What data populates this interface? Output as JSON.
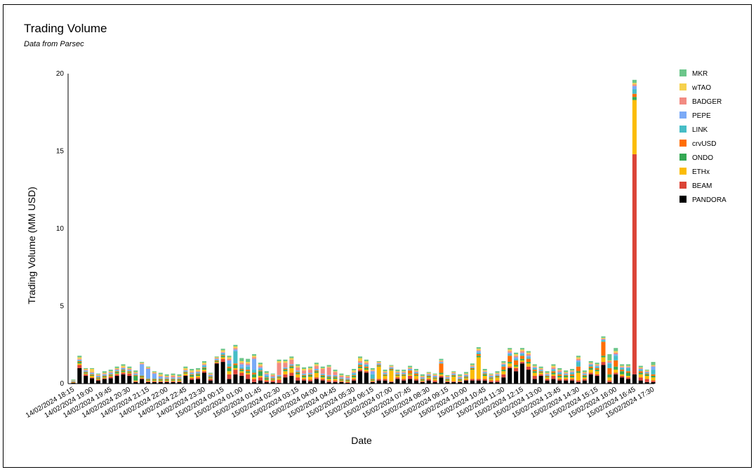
{
  "chart_data": {
    "type": "bar",
    "stacked": true,
    "title": "Trading Volume",
    "subtitle": "Data from Parsec",
    "xlabel": "Date",
    "ylabel": "Trading Volume (MM USD)",
    "ylim": [
      0,
      20
    ],
    "yticks": [
      0,
      5,
      10,
      15,
      20
    ],
    "grid": false,
    "legend_position": "right",
    "x_tick_labels": [
      "14/02/2024 18:15",
      "14/02/2024 19:00",
      "14/02/2024 19:45",
      "14/02/2024 20:30",
      "14/02/2024 21:15",
      "14/02/2024 22:00",
      "14/02/2024 22:45",
      "14/02/2024 23:30",
      "15/02/2024 00:15",
      "15/02/2024 01:00",
      "15/02/2024 01:45",
      "15/02/2024 02:30",
      "15/02/2024 03:15",
      "15/02/2024 04:00",
      "15/02/2024 04:45",
      "15/02/2024 05:30",
      "15/02/2024 06:15",
      "15/02/2024 07:00",
      "15/02/2024 07:45",
      "15/02/2024 08:30",
      "15/02/2024 09:15",
      "15/02/2024 10:00",
      "15/02/2024 10:45",
      "15/02/2024 11:30",
      "15/02/2024 12:15",
      "15/02/2024 13:00",
      "15/02/2024 13:45",
      "15/02/2024 14:30",
      "15/02/2024 15:15",
      "15/02/2024 16:00",
      "15/02/2024 16:45",
      "15/02/2024 17:30"
    ],
    "x": [
      "14/02/2024 18:15",
      "14/02/2024 18:30",
      "14/02/2024 18:45",
      "14/02/2024 19:00",
      "14/02/2024 19:15",
      "14/02/2024 19:30",
      "14/02/2024 19:45",
      "14/02/2024 20:00",
      "14/02/2024 20:15",
      "14/02/2024 20:30",
      "14/02/2024 20:45",
      "14/02/2024 21:00",
      "14/02/2024 21:15",
      "14/02/2024 21:30",
      "14/02/2024 21:45",
      "14/02/2024 22:00",
      "14/02/2024 22:15",
      "14/02/2024 22:30",
      "14/02/2024 22:45",
      "14/02/2024 23:00",
      "14/02/2024 23:15",
      "14/02/2024 23:30",
      "14/02/2024 23:45",
      "15/02/2024 00:00",
      "15/02/2024 00:15",
      "15/02/2024 00:30",
      "15/02/2024 00:45",
      "15/02/2024 01:00",
      "15/02/2024 01:15",
      "15/02/2024 01:30",
      "15/02/2024 01:45",
      "15/02/2024 02:00",
      "15/02/2024 02:15",
      "15/02/2024 02:30",
      "15/02/2024 02:45",
      "15/02/2024 03:00",
      "15/02/2024 03:15",
      "15/02/2024 03:30",
      "15/02/2024 03:45",
      "15/02/2024 04:00",
      "15/02/2024 04:15",
      "15/02/2024 04:30",
      "15/02/2024 04:45",
      "15/02/2024 05:00",
      "15/02/2024 05:15",
      "15/02/2024 05:30",
      "15/02/2024 05:45",
      "15/02/2024 06:00",
      "15/02/2024 06:15",
      "15/02/2024 06:30",
      "15/02/2024 06:45",
      "15/02/2024 07:00",
      "15/02/2024 07:15",
      "15/02/2024 07:30",
      "15/02/2024 07:45",
      "15/02/2024 08:00",
      "15/02/2024 08:15",
      "15/02/2024 08:30",
      "15/02/2024 08:45",
      "15/02/2024 09:00",
      "15/02/2024 09:15",
      "15/02/2024 09:30",
      "15/02/2024 09:45",
      "15/02/2024 10:00",
      "15/02/2024 10:15",
      "15/02/2024 10:30",
      "15/02/2024 10:45",
      "15/02/2024 11:00",
      "15/02/2024 11:15",
      "15/02/2024 11:30",
      "15/02/2024 11:45",
      "15/02/2024 12:00",
      "15/02/2024 12:15",
      "15/02/2024 12:30",
      "15/02/2024 12:45",
      "15/02/2024 13:00",
      "15/02/2024 13:15",
      "15/02/2024 13:30",
      "15/02/2024 13:45",
      "15/02/2024 14:00",
      "15/02/2024 14:15",
      "15/02/2024 14:30",
      "15/02/2024 14:45",
      "15/02/2024 15:00",
      "15/02/2024 15:15",
      "15/02/2024 15:30",
      "15/02/2024 15:45",
      "15/02/2024 16:00",
      "15/02/2024 16:15",
      "15/02/2024 16:30",
      "15/02/2024 16:45",
      "15/02/2024 17:00",
      "15/02/2024 17:15",
      "15/02/2024 17:30"
    ],
    "series": [
      {
        "name": "PANDORA",
        "color": "#000000",
        "values": [
          0.05,
          1.0,
          0.5,
          0.35,
          0.2,
          0.3,
          0.35,
          0.5,
          0.6,
          0.5,
          0.1,
          0.3,
          0.1,
          0.1,
          0.1,
          0.1,
          0.1,
          0.1,
          0.5,
          0.25,
          0.3,
          0.7,
          0.2,
          1.3,
          1.4,
          0.3,
          0.6,
          0.5,
          0.3,
          0.1,
          0.2,
          0.1,
          0.1,
          0.05,
          0.4,
          0.5,
          0.2,
          0.2,
          0.15,
          0.3,
          0.2,
          0.1,
          0.1,
          0.1,
          0.05,
          0.2,
          0.8,
          0.7,
          0.1,
          0.2,
          0.2,
          0.1,
          0.3,
          0.2,
          0.3,
          0.2,
          0.1,
          0.2,
          0.1,
          0.4,
          0.1,
          0.1,
          0.1,
          0.2,
          0.2,
          0.2,
          0.2,
          0.1,
          0.1,
          0.4,
          1.0,
          0.8,
          1.3,
          0.9,
          0.3,
          0.5,
          0.2,
          0.3,
          0.2,
          0.2,
          0.2,
          0.1,
          0.2,
          0.6,
          0.5,
          1.2,
          0.1,
          0.6,
          0.4,
          0.3,
          0.6,
          0.2,
          0.1,
          0.1
        ]
      },
      {
        "name": "BEAM",
        "color": "#db4437",
        "values": [
          0.02,
          0.2,
          0.1,
          0.05,
          0.05,
          0.05,
          0.1,
          0.1,
          0.1,
          0.15,
          0.05,
          0.05,
          0.05,
          0.05,
          0.05,
          0.05,
          0.05,
          0.05,
          0.05,
          0.1,
          0.1,
          0.1,
          0.1,
          0.05,
          0.2,
          0.3,
          0.3,
          0.2,
          0.3,
          0.2,
          0.2,
          0.1,
          0.1,
          0.2,
          0.2,
          0.2,
          0.2,
          0.1,
          0.1,
          0.1,
          0.1,
          0.1,
          0.1,
          0.05,
          0.05,
          0.1,
          0.1,
          0.1,
          0.05,
          0.1,
          0.1,
          0.05,
          0.1,
          0.1,
          0.2,
          0.1,
          0.05,
          0.1,
          0.1,
          0.1,
          0.05,
          0.05,
          0.05,
          0.05,
          0.1,
          0.1,
          0.1,
          0.1,
          0.1,
          0.2,
          0.1,
          0.2,
          0.1,
          0.2,
          0.2,
          0.1,
          0.1,
          0.2,
          0.1,
          0.1,
          0.1,
          0.1,
          0.1,
          0.1,
          0.1,
          0.2,
          0.1,
          0.1,
          0.1,
          0.1,
          14.2,
          0.2,
          0.2,
          0.1
        ]
      },
      {
        "name": "ETHx",
        "color": "#fbbc04",
        "values": [
          0.02,
          0.1,
          0.05,
          0.1,
          0.05,
          0.05,
          0.05,
          0.05,
          0.05,
          0.05,
          0.05,
          0.05,
          0.05,
          0.05,
          0.05,
          0.05,
          0.05,
          0.05,
          0.1,
          0.1,
          0.1,
          0.1,
          0.05,
          0.05,
          0.1,
          0.2,
          0.1,
          0.1,
          0.1,
          0.1,
          0.1,
          0.05,
          0.05,
          0.1,
          0.2,
          0.3,
          0.2,
          0.1,
          0.2,
          0.3,
          0.1,
          0.1,
          0.1,
          0.05,
          0.05,
          0.1,
          0.1,
          0.1,
          0.05,
          0.8,
          0.2,
          0.7,
          0.1,
          0.2,
          0.1,
          0.2,
          0.05,
          0.1,
          0.1,
          0.1,
          0.05,
          0.3,
          0.05,
          0.1,
          0.6,
          1.4,
          0.2,
          0.1,
          0.2,
          0.2,
          0.2,
          0.1,
          0.1,
          0.2,
          0.2,
          0.1,
          0.1,
          0.1,
          0.1,
          0.1,
          0.1,
          0.5,
          0.1,
          0.2,
          0.2,
          0.3,
          0.2,
          0.2,
          0.1,
          0.1,
          3.5,
          0.2,
          0.2,
          0.2
        ]
      },
      {
        "name": "ONDO",
        "color": "#34a853",
        "values": [
          0.02,
          0.1,
          0.05,
          0.05,
          0.05,
          0.05,
          0.05,
          0.1,
          0.1,
          0.05,
          0.3,
          0.05,
          0.05,
          0.05,
          0.05,
          0.05,
          0.05,
          0.05,
          0.05,
          0.1,
          0.1,
          0.1,
          0.05,
          0.05,
          0.1,
          0.2,
          0.2,
          0.1,
          0.1,
          0.2,
          0.3,
          0.1,
          0.05,
          0.05,
          0.1,
          0.1,
          0.1,
          0.1,
          0.1,
          0.1,
          0.1,
          0.1,
          0.1,
          0.05,
          0.05,
          0.1,
          0.1,
          0.1,
          0.05,
          0.05,
          0.05,
          0.05,
          0.05,
          0.05,
          0.05,
          0.05,
          0.05,
          0.05,
          0.05,
          0.1,
          0.05,
          0.05,
          0.05,
          0.05,
          0.05,
          0.1,
          0.1,
          0.05,
          0.05,
          0.1,
          0.1,
          0.1,
          0.1,
          0.1,
          0.1,
          0.05,
          0.05,
          0.1,
          0.1,
          0.1,
          0.1,
          0.1,
          0.1,
          0.1,
          0.1,
          0.1,
          0.2,
          0.2,
          0.2,
          0.2,
          0.2,
          0.1,
          0.1,
          0.1
        ]
      },
      {
        "name": "crvUSD",
        "color": "#ff6d01",
        "values": [
          0.02,
          0.05,
          0.05,
          0.05,
          0.05,
          0.05,
          0.05,
          0.05,
          0.05,
          0.05,
          0.05,
          0.05,
          0.05,
          0.05,
          0.05,
          0.05,
          0.05,
          0.05,
          0.05,
          0.05,
          0.05,
          0.05,
          0.05,
          0.05,
          0.05,
          0.1,
          0.1,
          0.05,
          0.1,
          0.1,
          0.05,
          0.05,
          0.05,
          0.05,
          0.05,
          0.05,
          0.05,
          0.05,
          0.05,
          0.05,
          0.05,
          0.05,
          0.05,
          0.05,
          0.05,
          0.05,
          0.1,
          0.1,
          0.05,
          0.05,
          0.05,
          0.05,
          0.05,
          0.05,
          0.2,
          0.1,
          0.05,
          0.05,
          0.05,
          0.6,
          0.05,
          0.05,
          0.05,
          0.05,
          0.05,
          0.1,
          0.05,
          0.05,
          0.05,
          0.2,
          0.4,
          0.3,
          0.2,
          0.2,
          0.1,
          0.05,
          0.05,
          0.1,
          0.1,
          0.05,
          0.1,
          0.3,
          0.05,
          0.1,
          0.1,
          0.9,
          0.4,
          0.4,
          0.1,
          0.1,
          0.2,
          0.1,
          0.05,
          0.1
        ]
      },
      {
        "name": "LINK",
        "color": "#46bdc6",
        "values": [
          0.02,
          0.05,
          0.05,
          0.05,
          0.05,
          0.05,
          0.05,
          0.05,
          0.05,
          0.05,
          0.05,
          0.05,
          0.05,
          0.05,
          0.05,
          0.05,
          0.05,
          0.05,
          0.05,
          0.05,
          0.05,
          0.1,
          0.05,
          0.05,
          0.1,
          0.2,
          0.8,
          0.1,
          0.2,
          0.2,
          0.1,
          0.1,
          0.05,
          0.05,
          0.05,
          0.05,
          0.05,
          0.05,
          0.05,
          0.05,
          0.05,
          0.05,
          0.05,
          0.05,
          0.05,
          0.1,
          0.1,
          0.1,
          0.3,
          0.05,
          0.05,
          0.05,
          0.05,
          0.05,
          0.05,
          0.05,
          0.05,
          0.05,
          0.05,
          0.05,
          0.05,
          0.05,
          0.05,
          0.05,
          0.05,
          0.1,
          0.05,
          0.05,
          0.05,
          0.1,
          0.1,
          0.1,
          0.1,
          0.1,
          0.1,
          0.05,
          0.05,
          0.1,
          0.1,
          0.05,
          0.1,
          0.3,
          0.05,
          0.1,
          0.1,
          0.1,
          0.3,
          0.3,
          0.1,
          0.2,
          0.3,
          0.1,
          0.05,
          0.3
        ]
      },
      {
        "name": "PEPE",
        "color": "#7baaf7",
        "values": [
          0.02,
          0.05,
          0.05,
          0.05,
          0.05,
          0.05,
          0.05,
          0.05,
          0.05,
          0.05,
          0.05,
          0.7,
          0.6,
          0.3,
          0.1,
          0.05,
          0.05,
          0.05,
          0.05,
          0.05,
          0.05,
          0.05,
          0.05,
          0.05,
          0.05,
          0.2,
          0.1,
          0.2,
          0.1,
          0.7,
          0.1,
          0.1,
          0.05,
          0.05,
          0.05,
          0.05,
          0.05,
          0.05,
          0.05,
          0.05,
          0.05,
          0.05,
          0.05,
          0.05,
          0.05,
          0.05,
          0.05,
          0.05,
          0.2,
          0.05,
          0.05,
          0.05,
          0.05,
          0.05,
          0.05,
          0.05,
          0.05,
          0.05,
          0.05,
          0.05,
          0.05,
          0.05,
          0.05,
          0.05,
          0.05,
          0.1,
          0.05,
          0.05,
          0.05,
          0.05,
          0.1,
          0.1,
          0.1,
          0.1,
          0.05,
          0.05,
          0.05,
          0.05,
          0.05,
          0.05,
          0.05,
          0.1,
          0.05,
          0.05,
          0.05,
          0.05,
          0.05,
          0.1,
          0.05,
          0.05,
          0.2,
          0.05,
          0.05,
          0.2
        ]
      },
      {
        "name": "BADGER",
        "color": "#f28b82",
        "values": [
          0.02,
          0.05,
          0.05,
          0.05,
          0.05,
          0.05,
          0.05,
          0.05,
          0.05,
          0.05,
          0.05,
          0.05,
          0.05,
          0.05,
          0.05,
          0.05,
          0.1,
          0.05,
          0.05,
          0.05,
          0.05,
          0.05,
          0.05,
          0.05,
          0.05,
          0.1,
          0.1,
          0.1,
          0.1,
          0.1,
          0.1,
          0.05,
          0.1,
          0.8,
          0.3,
          0.3,
          0.2,
          0.2,
          0.2,
          0.2,
          0.3,
          0.5,
          0.2,
          0.1,
          0.1,
          0.05,
          0.1,
          0.1,
          0.05,
          0.05,
          0.05,
          0.05,
          0.05,
          0.05,
          0.05,
          0.05,
          0.05,
          0.05,
          0.05,
          0.05,
          0.05,
          0.05,
          0.05,
          0.05,
          0.05,
          0.05,
          0.05,
          0.05,
          0.05,
          0.05,
          0.1,
          0.1,
          0.1,
          0.1,
          0.05,
          0.05,
          0.05,
          0.1,
          0.1,
          0.05,
          0.05,
          0.1,
          0.05,
          0.05,
          0.05,
          0.05,
          0.1,
          0.1,
          0.05,
          0.05,
          0.1,
          0.05,
          0.05,
          0.05
        ]
      },
      {
        "name": "wTAO",
        "color": "#f6d14d",
        "values": [
          0.02,
          0.1,
          0.05,
          0.2,
          0.05,
          0.05,
          0.05,
          0.05,
          0.1,
          0.05,
          0.05,
          0.05,
          0.05,
          0.05,
          0.1,
          0.05,
          0.05,
          0.05,
          0.1,
          0.1,
          0.1,
          0.1,
          0.05,
          0.05,
          0.1,
          0.1,
          0.1,
          0.1,
          0.1,
          0.1,
          0.1,
          0.05,
          0.05,
          0.1,
          0.1,
          0.1,
          0.1,
          0.1,
          0.1,
          0.1,
          0.05,
          0.05,
          0.05,
          0.05,
          0.05,
          0.1,
          0.2,
          0.1,
          0.05,
          0.05,
          0.05,
          0.05,
          0.05,
          0.05,
          0.05,
          0.05,
          0.05,
          0.05,
          0.05,
          0.05,
          0.05,
          0.05,
          0.05,
          0.05,
          0.05,
          0.1,
          0.05,
          0.05,
          0.05,
          0.05,
          0.1,
          0.1,
          0.1,
          0.1,
          0.05,
          0.05,
          0.05,
          0.1,
          0.05,
          0.05,
          0.05,
          0.1,
          0.05,
          0.05,
          0.05,
          0.05,
          0.05,
          0.1,
          0.05,
          0.05,
          0.1,
          0.05,
          0.05,
          0.05
        ]
      },
      {
        "name": "MKR",
        "color": "#6bc68a",
        "values": [
          0.05,
          0.1,
          0.05,
          0.05,
          0.05,
          0.1,
          0.1,
          0.1,
          0.1,
          0.1,
          0.1,
          0.05,
          0.05,
          0.05,
          0.1,
          0.1,
          0.1,
          0.1,
          0.1,
          0.1,
          0.1,
          0.1,
          0.05,
          0.05,
          0.1,
          0.1,
          0.1,
          0.2,
          0.2,
          0.1,
          0.1,
          0.1,
          0.05,
          0.1,
          0.1,
          0.1,
          0.1,
          0.1,
          0.1,
          0.1,
          0.1,
          0.1,
          0.1,
          0.1,
          0.05,
          0.1,
          0.1,
          0.1,
          0.1,
          0.05,
          0.1,
          0.05,
          0.1,
          0.1,
          0.1,
          0.1,
          0.1,
          0.05,
          0.05,
          0.1,
          0.05,
          0.05,
          0.1,
          0.1,
          0.1,
          0.1,
          0.1,
          0.05,
          0.1,
          0.1,
          0.1,
          0.1,
          0.1,
          0.1,
          0.1,
          0.1,
          0.1,
          0.1,
          0.1,
          0.1,
          0.1,
          0.1,
          0.1,
          0.1,
          0.1,
          0.1,
          0.4,
          0.2,
          0.1,
          0.1,
          0.2,
          0.1,
          0.05,
          0.2
        ]
      }
    ]
  }
}
